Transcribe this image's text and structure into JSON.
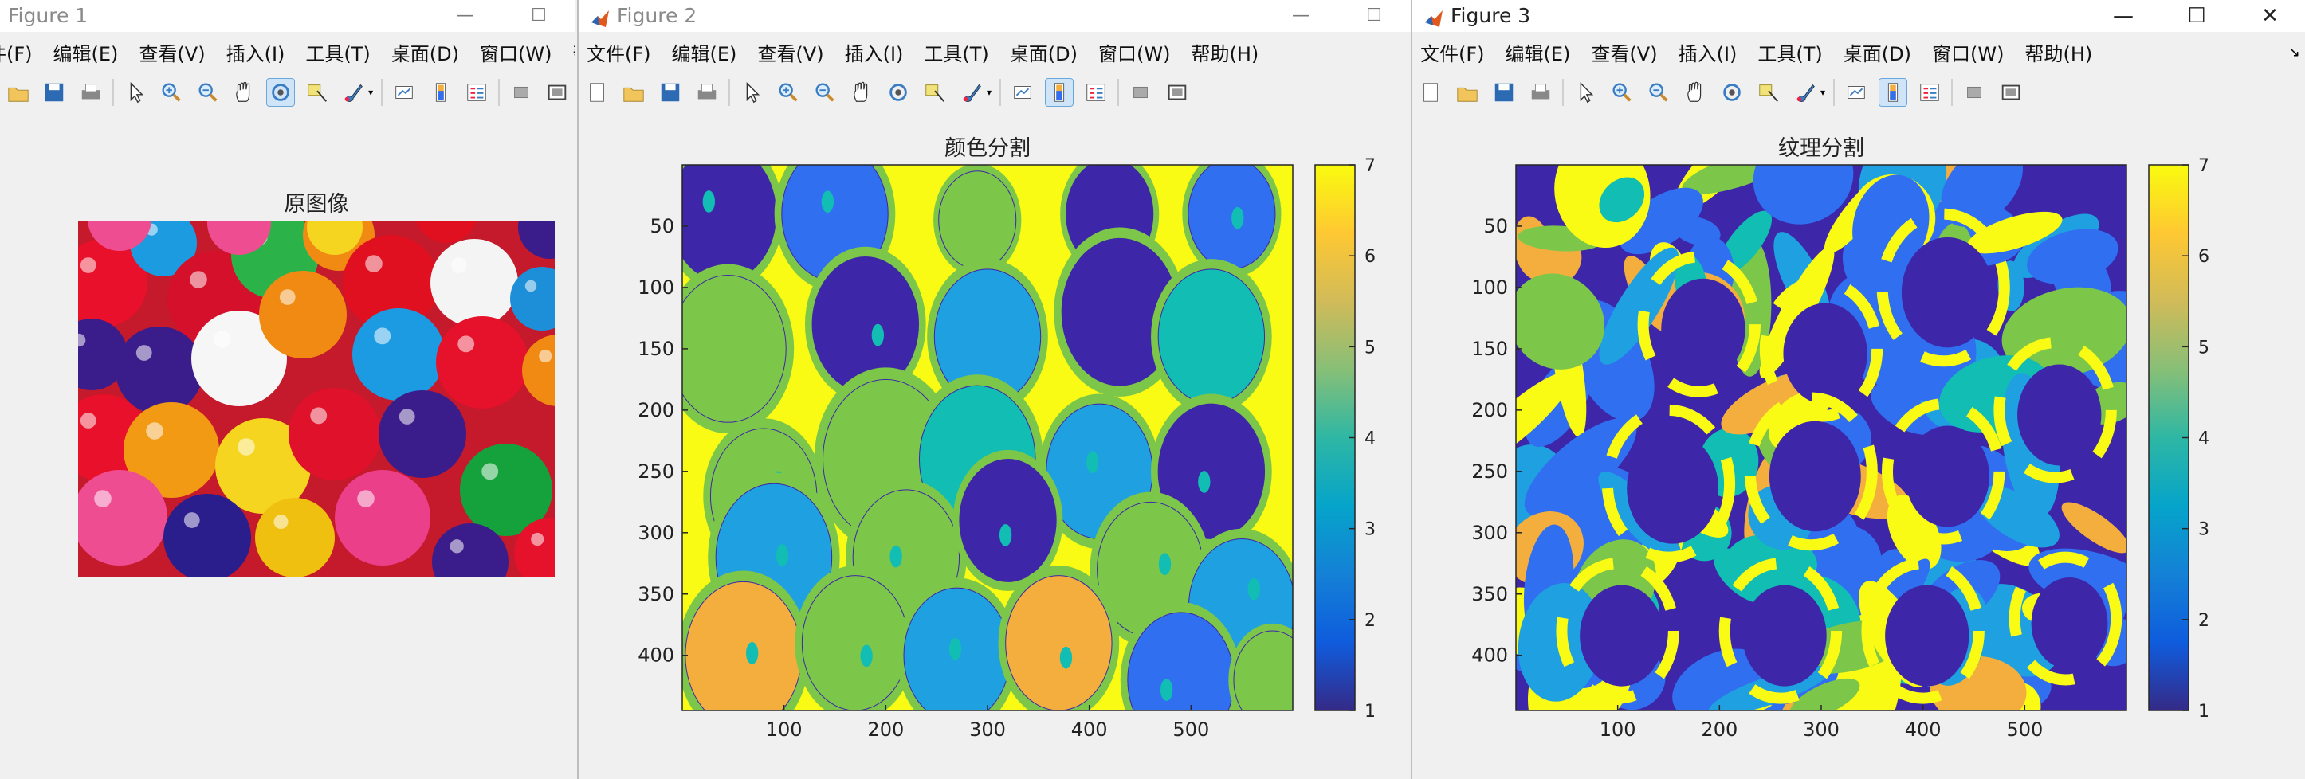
{
  "windows": [
    {
      "id": "fig1",
      "title": "Figure 1",
      "menus": [
        "件(F)",
        "编辑(E)",
        "查看(V)",
        "插入(I)",
        "工具(T)",
        "桌面(D)",
        "窗口(W)",
        "帮助(H)"
      ],
      "axes_title": "原图像"
    },
    {
      "id": "fig2",
      "title": "Figure 2",
      "menus": [
        "文件(F)",
        "编辑(E)",
        "查看(V)",
        "插入(I)",
        "工具(T)",
        "桌面(D)",
        "窗口(W)",
        "帮助(H)"
      ],
      "axes_title": "颜色分割",
      "yticks": [
        "50",
        "100",
        "150",
        "200",
        "250",
        "300",
        "350",
        "400"
      ],
      "xticks": [
        "100",
        "200",
        "300",
        "400",
        "500"
      ],
      "cbticks": [
        "1",
        "2",
        "3",
        "4",
        "5",
        "6",
        "7"
      ]
    },
    {
      "id": "fig3",
      "title": "Figure 3",
      "menus": [
        "文件(F)",
        "编辑(E)",
        "查看(V)",
        "插入(I)",
        "工具(T)",
        "桌面(D)",
        "窗口(W)",
        "帮助(H)"
      ],
      "axes_title": "纹理分割",
      "yticks": [
        "50",
        "100",
        "150",
        "200",
        "250",
        "300",
        "350",
        "400"
      ],
      "xticks": [
        "100",
        "200",
        "300",
        "400",
        "500"
      ],
      "cbticks": [
        "1",
        "2",
        "3",
        "4",
        "5",
        "6",
        "7"
      ]
    }
  ],
  "window_buttons": {
    "minimize": "—",
    "maximize": "☐",
    "close": "✕"
  },
  "colormap": [
    "#3e26a8",
    "#2f6ff0",
    "#1fa0e0",
    "#12bdb4",
    "#7cc64a",
    "#f4ae3d",
    "#f9fb15"
  ],
  "toolbar_icons": [
    "new-figure-icon",
    "open-file-icon",
    "save-icon",
    "print-icon",
    "select-arrow-icon",
    "zoom-in-icon",
    "zoom-out-icon",
    "pan-hand-icon",
    "rotate-3d-icon",
    "data-cursor-icon",
    "brush-icon",
    "link-plot-icon",
    "colorbar-icon",
    "legend-icon",
    "hide-plot-tools-icon",
    "show-plot-tools-icon"
  ]
}
